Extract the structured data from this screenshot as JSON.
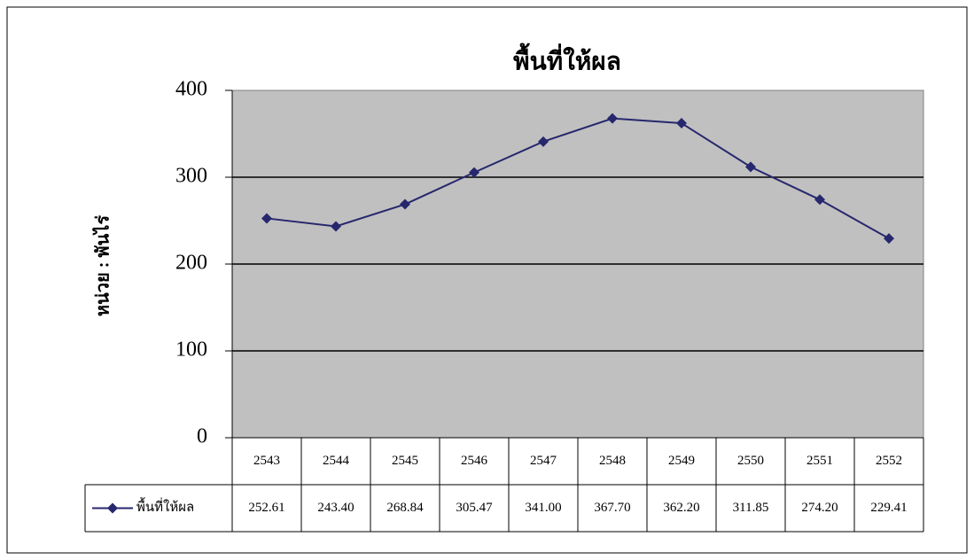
{
  "chart_data": {
    "type": "line",
    "title": "พื้นที่ให้ผล",
    "y_label": "หน่วย : พันไร่",
    "categories": [
      "2543",
      "2544",
      "2545",
      "2546",
      "2547",
      "2548",
      "2549",
      "2550",
      "2551",
      "2552"
    ],
    "series": [
      {
        "name": "พื้นที่ให้ผล",
        "color": "#27276e",
        "values": [
          252.61,
          243.4,
          268.84,
          305.47,
          341.0,
          367.7,
          362.2,
          311.85,
          274.2,
          229.41
        ],
        "value_labels": [
          "252.61",
          "243.40",
          "268.84",
          "305.47",
          "341.00",
          "367.70",
          "362.20",
          "311.85",
          "274.20",
          "229.41"
        ]
      }
    ],
    "ylim": [
      0,
      400
    ],
    "yticks": [
      0,
      100,
      200,
      300,
      400
    ],
    "grid": true,
    "plot_background": "#c0c0c0"
  }
}
